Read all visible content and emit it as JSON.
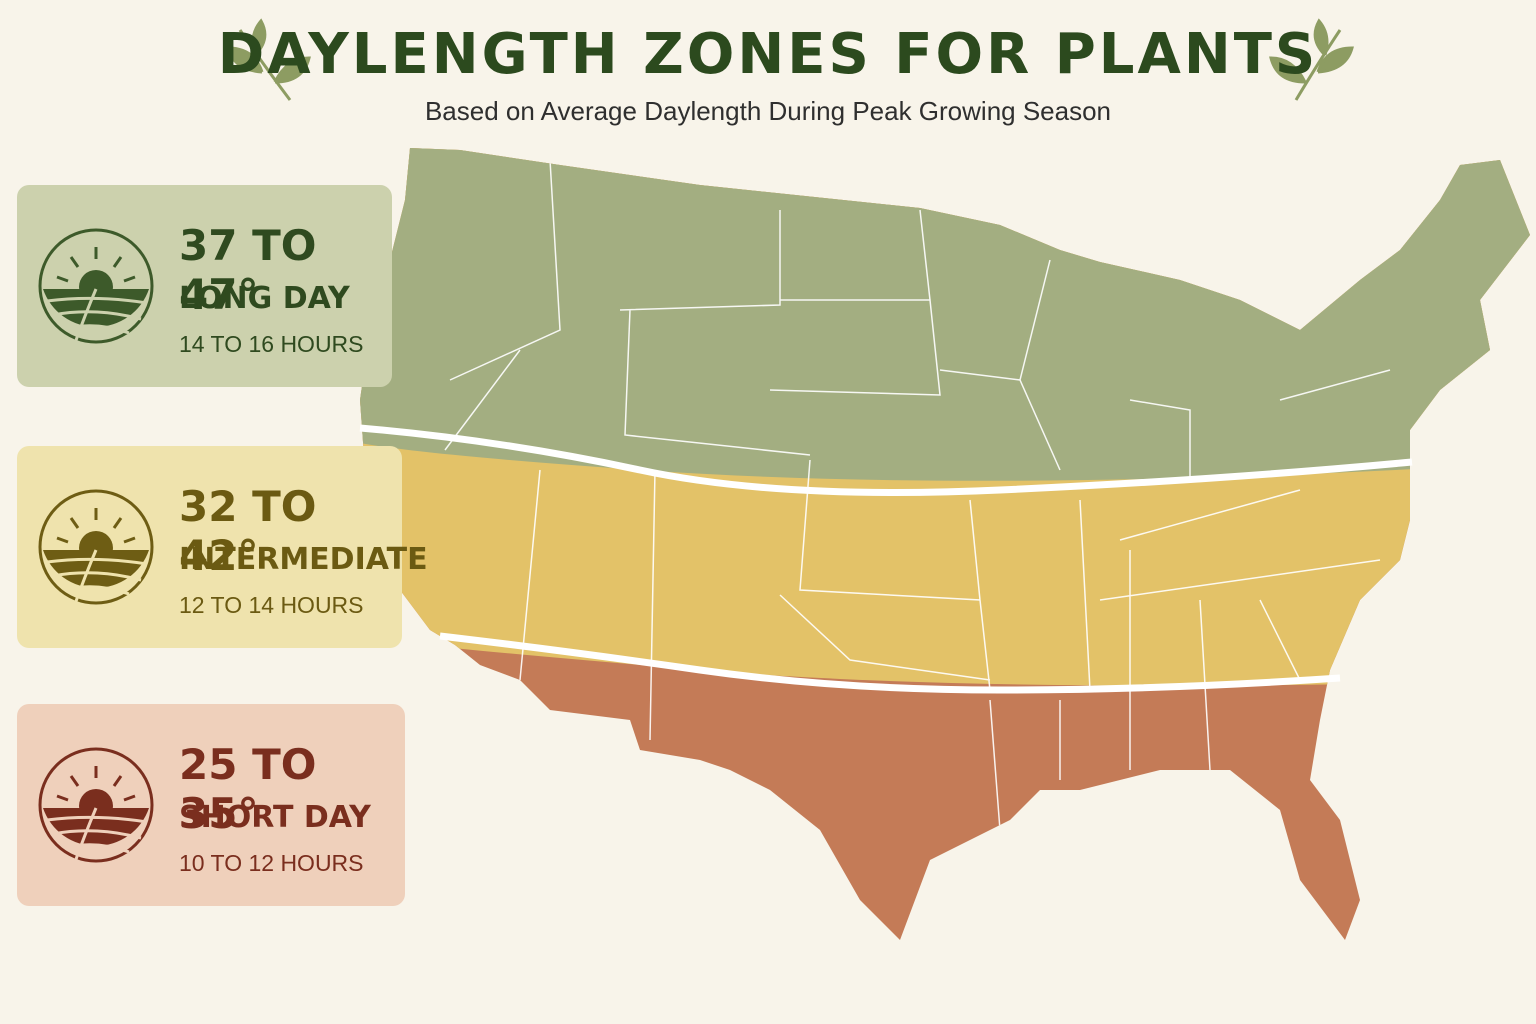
{
  "header": {
    "title": "DAYLENGTH ZONES FOR PLANTS",
    "subtitle": "Based on Average Daylength During Peak Growing Season"
  },
  "zones": [
    {
      "range": "37 TO 47°",
      "name": "LONG DAY",
      "hours": "14 TO 16 HOURS"
    },
    {
      "range": "32 TO 42°",
      "name": "INTERMEDIATE",
      "hours": "12 TO 14 HOURS"
    },
    {
      "range": "25 TO 35°",
      "name": "SHORT DAY",
      "hours": "10 TO 12 HOURS"
    }
  ]
}
